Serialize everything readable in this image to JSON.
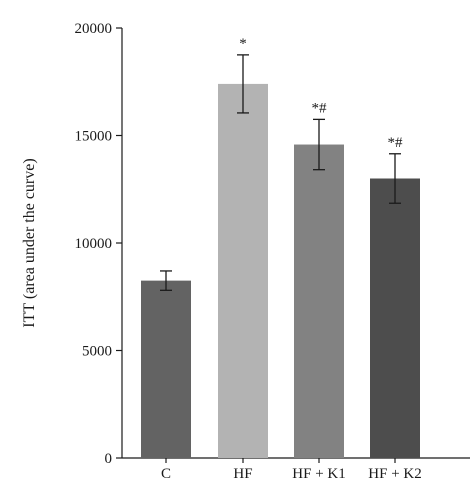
{
  "chart_data": {
    "type": "bar",
    "categories": [
      "C",
      "HF",
      "HF + K1",
      "HF + K2"
    ],
    "values": [
      8250,
      17400,
      14580,
      13000
    ],
    "error_bars": [
      450,
      1350,
      1170,
      1150
    ],
    "annotations": [
      "",
      "*",
      "*#",
      "*#"
    ],
    "bar_colors": [
      "#636363",
      "#b3b3b3",
      "#828282",
      "#4d4d4d"
    ],
    "title": "",
    "xlabel": "",
    "ylabel": "ITT (area under the curve)",
    "ylim": [
      0,
      20000
    ],
    "yticks": [
      0,
      5000,
      10000,
      15000,
      20000
    ],
    "ytick_labels": [
      "0",
      "5000",
      "10000",
      "15000",
      "20000"
    ],
    "grid": false,
    "legend": "none"
  }
}
